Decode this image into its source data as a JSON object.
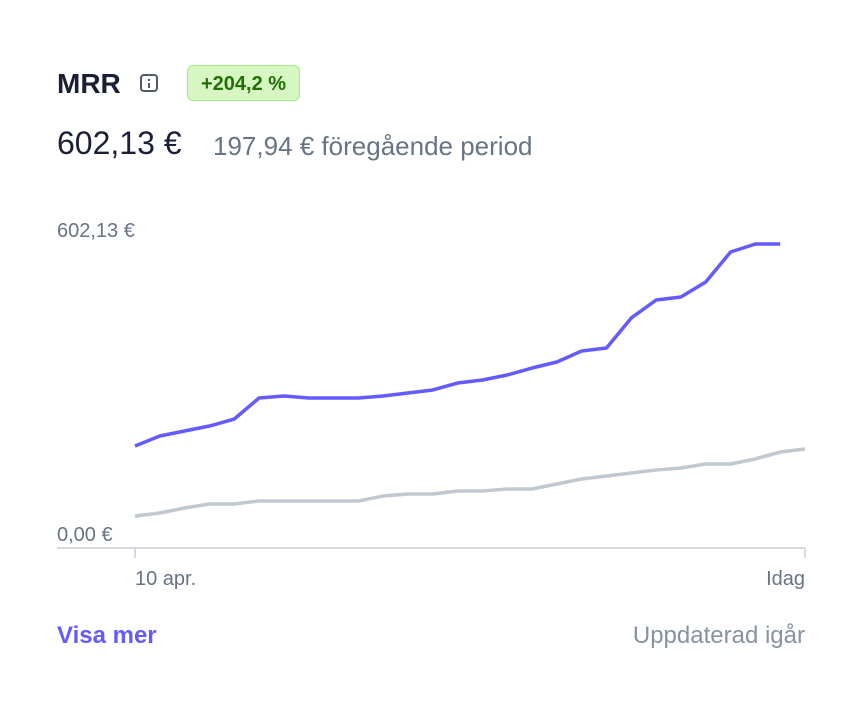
{
  "header": {
    "title": "MRR",
    "badge": "+204,2 %",
    "value": "602,13 €",
    "previous": "197,94 € föregående period"
  },
  "chart_data": {
    "type": "line",
    "categories": [
      "10 apr.",
      null,
      null,
      null,
      null,
      null,
      null,
      null,
      null,
      null,
      null,
      null,
      null,
      null,
      null,
      null,
      null,
      null,
      null,
      null,
      null,
      null,
      null,
      null,
      null,
      null,
      null,
      "Idag"
    ],
    "series": [
      {
        "color": "#635bff",
        "values": [
          202.0,
          221.8,
          231.7,
          241.6,
          255.5,
          297.1,
          301.1,
          297.1,
          297.1,
          297.1,
          301.1,
          307.0,
          313.0,
          326.8,
          332.8,
          342.7,
          356.5,
          368.4,
          390.2,
          396.1,
          455.6,
          491.2,
          497.2,
          526.9,
          586.3,
          602.13,
          602.13,
          null
        ]
      },
      {
        "color": "#c0c8d2",
        "values": [
          63.4,
          69.3,
          79.2,
          87.2,
          87.2,
          93.1,
          93.1,
          93.1,
          93.1,
          93.1,
          103.0,
          107.0,
          107.0,
          112.9,
          112.9,
          116.9,
          116.9,
          126.8,
          136.7,
          142.6,
          148.6,
          154.5,
          158.5,
          166.4,
          166.4,
          176.3,
          190.1,
          196.1
        ]
      }
    ],
    "ylim": [
      0,
      602.13
    ],
    "yticks": [
      {
        "value": 602.13,
        "label": "602,13 €"
      },
      {
        "value": 0,
        "label": "0,00 €"
      }
    ]
  },
  "footer": {
    "link": "Visa mer",
    "status": "Uppdaterad igår"
  }
}
